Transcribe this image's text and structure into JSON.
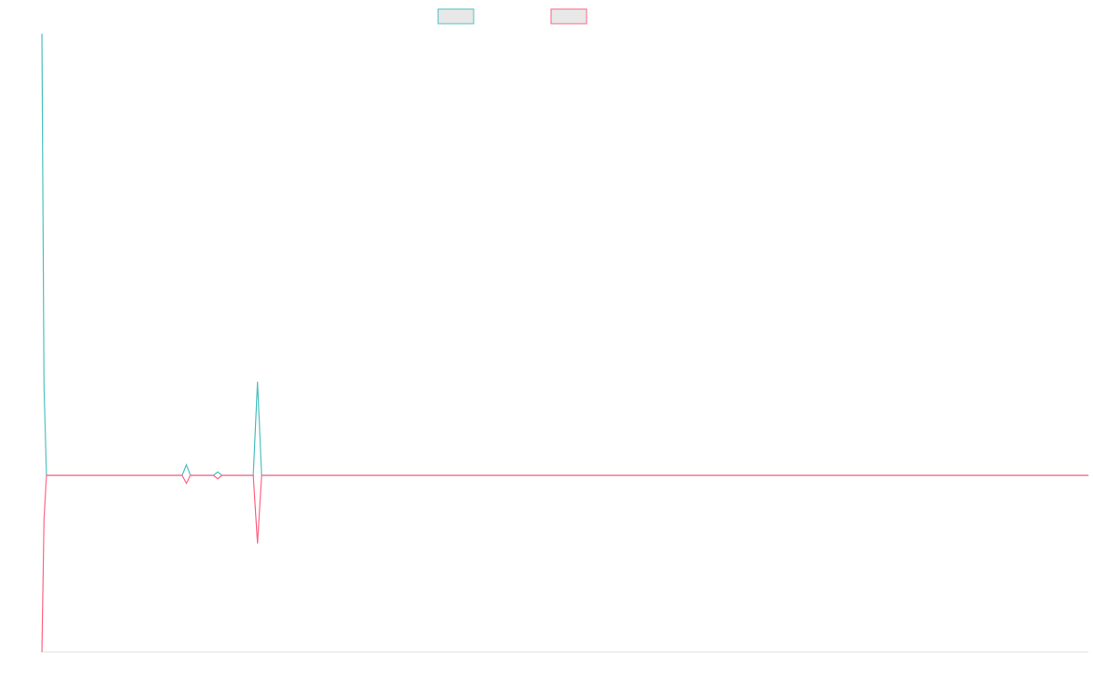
{
  "chart_data": {
    "type": "line",
    "x": [
      0,
      0.2,
      0.44,
      13.4,
      13.8,
      14.2,
      16.4,
      16.8,
      17.2,
      20.2,
      20.6,
      21.0,
      100
    ],
    "xlim": [
      0,
      100
    ],
    "ylim": [
      -200,
      500
    ],
    "series": [
      {
        "color": "#4bc0c0",
        "values": [
          500,
          100,
          0,
          0,
          12,
          0,
          0,
          4,
          0,
          0,
          106,
          0,
          0
        ]
      },
      {
        "color": "#ff6384",
        "values": [
          -200,
          -50,
          0,
          0,
          -9,
          0,
          0,
          -4,
          0,
          0,
          -77,
          0,
          0
        ]
      }
    ]
  }
}
